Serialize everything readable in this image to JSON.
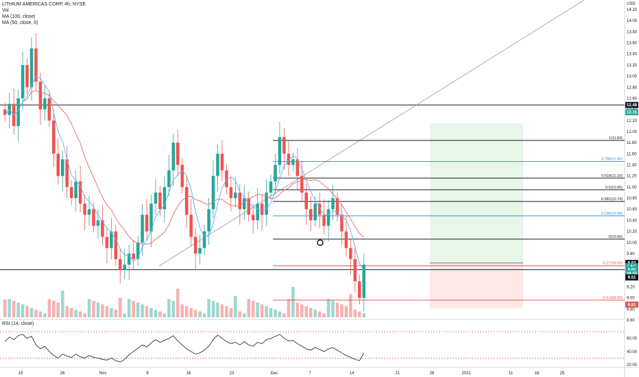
{
  "header": {
    "symbol": "LITHIUM AMERICAS CORP, 4h, NYSE",
    "indicators": [
      "Vol",
      "MA (100, close)",
      "MA (50, close, 0)"
    ],
    "rsi_label": "RSI (14, close)"
  },
  "price_axis": {
    "currency": "USD",
    "ticks": [
      "14.20",
      "14.00",
      "13.80",
      "13.60",
      "13.40",
      "13.20",
      "13.00",
      "12.80",
      "12.60",
      "12.40",
      "12.20",
      "12.00",
      "11.80",
      "11.60",
      "11.40",
      "11.20",
      "11.00",
      "10.80",
      "10.60",
      "10.40",
      "10.20",
      "10.00",
      "9.80",
      "9.60",
      "9.40",
      "9.20",
      "9.00",
      "8.80",
      "8.60"
    ]
  },
  "rsi_axis": {
    "ticks": [
      "60.00",
      "40.00",
      "20.00"
    ]
  },
  "time_axis": {
    "labels": [
      "19",
      "26",
      "Nov",
      "9",
      "16",
      "23",
      "Dec",
      "7",
      "14",
      "21",
      "28",
      "2021",
      "11",
      "18",
      "25"
    ]
  },
  "price_tags": [
    {
      "text": "12.48",
      "color": "#131722"
    },
    {
      "text": "12.15",
      "color": "#26a69a"
    },
    {
      "text": "9.63",
      "color": "#131722"
    },
    {
      "text": "LAC",
      "color": "#26a69a"
    },
    {
      "text": "9.60",
      "color": "#26a69a"
    },
    {
      "text": "38:55",
      "color": "#26a69a"
    },
    {
      "text": "9.51",
      "color": "#131722"
    },
    {
      "text": "8.81",
      "color": "#ef5350"
    }
  ],
  "fib_levels": [
    {
      "label": "1(11.84)",
      "price": 11.84,
      "color": "#131722"
    },
    {
      "label": "0.786(11.46)",
      "price": 11.46,
      "color": "#2196f3"
    },
    {
      "label": "0.618(11.16)",
      "price": 11.16,
      "color": "#131722"
    },
    {
      "label": "0.5(10.95)",
      "price": 10.95,
      "color": "#131722"
    },
    {
      "label": "0.382(10.74)",
      "price": 10.74,
      "color": "#131722"
    },
    {
      "label": "0.236(10.48)",
      "price": 10.48,
      "color": "#2196f3"
    },
    {
      "label": "0(10.06)",
      "price": 10.06,
      "color": "#131722"
    },
    {
      "label": "-0.272(9.58)",
      "price": 9.58,
      "color": "#ef5350"
    },
    {
      "label": "-0.618(8.96)",
      "price": 8.96,
      "color": "#ef5350"
    }
  ],
  "colors": {
    "up": "#26a69a",
    "down": "#ef5350",
    "ma100": "#e57373",
    "ma50": "#64b5f6",
    "rsi": "#131722"
  },
  "chart_data": {
    "type": "candlestick",
    "title": "LITHIUM AMERICAS CORP, 4h, NYSE",
    "y_range": [
      8.5,
      14.3
    ],
    "horizontal_levels": [
      12.48,
      9.51
    ],
    "position_tool": {
      "entry": 9.63,
      "target": 12.15,
      "stop": 8.81
    },
    "close_series": [
      12.3,
      12.5,
      12.1,
      12.6,
      13.2,
      12.8,
      13.5,
      12.9,
      12.4,
      12.6,
      12.2,
      11.6,
      11.2,
      11.5,
      11.0,
      10.8,
      11.1,
      10.7,
      10.5,
      10.6,
      10.3,
      10.4,
      10.1,
      9.9,
      10.2,
      9.7,
      9.5,
      9.6,
      9.8,
      9.7,
      10.0,
      10.5,
      10.2,
      10.7,
      10.9,
      10.6,
      11.0,
      11.3,
      11.8,
      11.4,
      11.0,
      10.5,
      10.1,
      9.8,
      9.9,
      10.2,
      10.6,
      11.2,
      11.6,
      11.3,
      11.0,
      10.8,
      10.9,
      10.6,
      10.8,
      10.5,
      10.4,
      10.7,
      10.5,
      10.9,
      11.1,
      11.4,
      11.9,
      11.6,
      11.4,
      11.5,
      11.2,
      10.9,
      10.6,
      10.4,
      10.7,
      10.5,
      10.3,
      10.6,
      10.8,
      10.5,
      10.2,
      9.9,
      9.7,
      9.3,
      9.0,
      9.6
    ],
    "rsi_series": [
      55,
      62,
      58,
      64,
      66,
      60,
      63,
      50,
      44,
      48,
      40,
      34,
      30,
      36,
      33,
      31,
      36,
      32,
      30,
      34,
      31,
      30,
      28,
      27,
      30,
      26,
      24,
      28,
      35,
      40,
      45,
      50,
      47,
      53,
      58,
      54,
      57,
      60,
      64,
      56,
      50,
      44,
      40,
      36,
      38,
      42,
      48,
      58,
      65,
      60,
      55,
      52,
      54,
      50,
      55,
      50,
      48,
      54,
      52,
      58,
      60,
      63,
      66,
      60,
      56,
      57,
      52,
      48,
      44,
      42,
      46,
      43,
      40,
      44,
      46,
      42,
      38,
      34,
      31,
      28,
      26,
      38
    ]
  }
}
